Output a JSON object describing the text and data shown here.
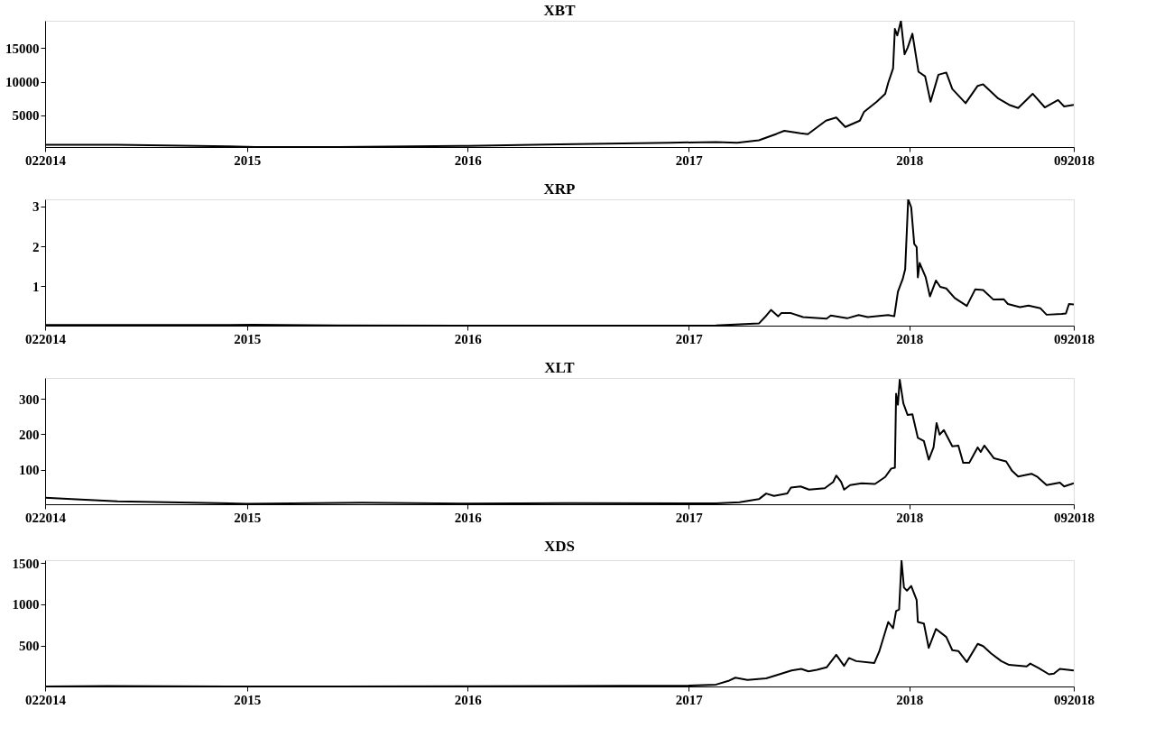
{
  "chart_data": [
    {
      "type": "line",
      "title": "XBT",
      "color": "#000000",
      "grid": false,
      "xlim": [
        "2014-02-01",
        "2018-09-30"
      ],
      "xticks": [
        {
          "value": "2014-02-01",
          "label": "022014"
        },
        {
          "value": "2015-01-01",
          "label": "2015"
        },
        {
          "value": "2016-01-01",
          "label": "2016"
        },
        {
          "value": "2017-01-01",
          "label": "2017"
        },
        {
          "value": "2018-01-01",
          "label": "2018"
        },
        {
          "value": "2018-09-30",
          "label": "092018"
        }
      ],
      "ylim": [
        250,
        19100
      ],
      "yticks": [
        5000,
        10000,
        15000
      ],
      "x": [
        "2014-02-01",
        "2014-06-01",
        "2014-12-01",
        "2015-01-15",
        "2015-06-01",
        "2016-01-01",
        "2016-06-01",
        "2016-12-01",
        "2017-02-15",
        "2017-03-22",
        "2017-04-27",
        "2017-05-26",
        "2017-06-08",
        "2017-07-05",
        "2017-07-17",
        "2017-08-16",
        "2017-09-02",
        "2017-09-17",
        "2017-10-11",
        "2017-10-18",
        "2017-11-08",
        "2017-11-22",
        "2017-11-27",
        "2017-12-05",
        "2017-12-08",
        "2017-12-12",
        "2017-12-18",
        "2017-12-24",
        "2017-12-29",
        "2018-01-06",
        "2018-01-16",
        "2018-01-27",
        "2018-02-05",
        "2018-02-18",
        "2018-03-03",
        "2018-03-13",
        "2018-04-04",
        "2018-04-24",
        "2018-05-03",
        "2018-05-28",
        "2018-06-15",
        "2018-06-30",
        "2018-07-24",
        "2018-08-13",
        "2018-09-04",
        "2018-09-14",
        "2018-09-30"
      ],
      "values": [
        600,
        600,
        350,
        250,
        260,
        430,
        650,
        900,
        1000,
        890,
        1265,
        2210,
        2680,
        2300,
        2160,
        4190,
        4660,
        3250,
        4190,
        5510,
        7020,
        8200,
        9850,
        11980,
        17880,
        16900,
        19060,
        14100,
        15050,
        17170,
        11500,
        10800,
        7020,
        11040,
        11370,
        8910,
        6790,
        9380,
        9620,
        7500,
        6550,
        6080,
        8200,
        6170,
        7260,
        6310,
        6550
      ]
    },
    {
      "type": "line",
      "title": "XRP",
      "color": "#000000",
      "grid": false,
      "xlim": [
        "2014-02-01",
        "2018-09-30"
      ],
      "xticks": [
        {
          "value": "2014-02-01",
          "label": "022014"
        },
        {
          "value": "2015-01-01",
          "label": "2015"
        },
        {
          "value": "2016-01-01",
          "label": "2016"
        },
        {
          "value": "2017-01-01",
          "label": "2017"
        },
        {
          "value": "2018-01-01",
          "label": "2018"
        },
        {
          "value": "2018-09-30",
          "label": "092018"
        }
      ],
      "ylim": [
        0.005,
        3.18
      ],
      "yticks": [
        1,
        2,
        3
      ],
      "x": [
        "2014-02-01",
        "2014-12-01",
        "2015-01-10",
        "2015-06-01",
        "2016-01-01",
        "2017-01-01",
        "2017-02-15",
        "2017-04-27",
        "2017-05-07",
        "2017-05-17",
        "2017-05-29",
        "2017-06-03",
        "2017-06-19",
        "2017-07-09",
        "2017-08-17",
        "2017-08-24",
        "2017-09-20",
        "2017-10-09",
        "2017-10-24",
        "2017-11-27",
        "2017-12-07",
        "2017-12-13",
        "2017-12-21",
        "2017-12-25",
        "2017-12-30",
        "2018-01-04",
        "2018-01-09",
        "2018-01-13",
        "2018-01-15",
        "2018-01-18",
        "2018-01-28",
        "2018-02-04",
        "2018-02-14",
        "2018-02-21",
        "2018-03-03",
        "2018-03-17",
        "2018-04-06",
        "2018-04-20",
        "2018-05-03",
        "2018-05-20",
        "2018-06-06",
        "2018-06-13",
        "2018-07-03",
        "2018-07-17",
        "2018-08-06",
        "2018-08-16",
        "2018-09-10",
        "2018-09-17",
        "2018-09-22",
        "2018-09-30"
      ],
      "values": [
        0.02,
        0.02,
        0.03,
        0.01,
        0.006,
        0.007,
        0.01,
        0.06,
        0.22,
        0.4,
        0.24,
        0.32,
        0.32,
        0.22,
        0.18,
        0.26,
        0.19,
        0.27,
        0.22,
        0.27,
        0.24,
        0.86,
        1.18,
        1.42,
        3.18,
        2.98,
        2.06,
        1.98,
        1.22,
        1.58,
        1.22,
        0.74,
        1.14,
        0.98,
        0.94,
        0.7,
        0.5,
        0.92,
        0.9,
        0.66,
        0.67,
        0.55,
        0.47,
        0.51,
        0.44,
        0.28,
        0.3,
        0.31,
        0.55,
        0.54
      ]
    },
    {
      "type": "line",
      "title": "XLT",
      "color": "#000000",
      "grid": false,
      "xlim": [
        "2014-02-01",
        "2018-09-30"
      ],
      "xticks": [
        {
          "value": "2014-02-01",
          "label": "022014"
        },
        {
          "value": "2015-01-01",
          "label": "2015"
        },
        {
          "value": "2016-01-01",
          "label": "2016"
        },
        {
          "value": "2017-01-01",
          "label": "2017"
        },
        {
          "value": "2018-01-01",
          "label": "2018"
        },
        {
          "value": "2018-09-30",
          "label": "092018"
        }
      ],
      "ylim": [
        1.5,
        360
      ],
      "yticks": [
        100,
        200,
        300
      ],
      "x": [
        "2014-02-01",
        "2014-04-01",
        "2014-06-01",
        "2015-01-01",
        "2015-07-10",
        "2016-01-01",
        "2016-06-15",
        "2017-01-01",
        "2017-02-15",
        "2017-03-26",
        "2017-04-27",
        "2017-05-09",
        "2017-05-22",
        "2017-06-13",
        "2017-06-19",
        "2017-07-05",
        "2017-07-19",
        "2017-08-14",
        "2017-08-28",
        "2017-09-02",
        "2017-09-10",
        "2017-09-15",
        "2017-09-25",
        "2017-10-14",
        "2017-11-05",
        "2017-11-22",
        "2017-12-02",
        "2017-12-08",
        "2017-12-10",
        "2017-12-13",
        "2017-12-16",
        "2017-12-22",
        "2017-12-29",
        "2018-01-06",
        "2018-01-15",
        "2018-01-25",
        "2018-02-02",
        "2018-02-10",
        "2018-02-15",
        "2018-02-20",
        "2018-02-27",
        "2018-03-13",
        "2018-03-23",
        "2018-03-31",
        "2018-04-10",
        "2018-04-24",
        "2018-04-29",
        "2018-05-05",
        "2018-05-21",
        "2018-06-10",
        "2018-06-20",
        "2018-06-30",
        "2018-07-22",
        "2018-08-01",
        "2018-08-16",
        "2018-09-07",
        "2018-09-14",
        "2018-09-30"
      ],
      "values": [
        20,
        15,
        10,
        3,
        6,
        3.5,
        4.5,
        4,
        4,
        7,
        16,
        32,
        25,
        32,
        49,
        52,
        43,
        47,
        65,
        83,
        65,
        43,
        56,
        61,
        59,
        79,
        103,
        105,
        315,
        284,
        355,
        288,
        255,
        257,
        190,
        181,
        128,
        163,
        232,
        199,
        212,
        166,
        168,
        119,
        119,
        163,
        150,
        168,
        132,
        123,
        96,
        80,
        88,
        79,
        56,
        63,
        52,
        61
      ]
    },
    {
      "type": "line",
      "title": "XDS",
      "color": "#000000",
      "grid": false,
      "xlim": [
        "2014-02-01",
        "2018-09-30"
      ],
      "xticks": [
        {
          "value": "2014-02-01",
          "label": "022014"
        },
        {
          "value": "2015-01-01",
          "label": "2015"
        },
        {
          "value": "2016-01-01",
          "label": "2016"
        },
        {
          "value": "2017-01-01",
          "label": "2017"
        },
        {
          "value": "2018-01-01",
          "label": "2018"
        },
        {
          "value": "2018-09-30",
          "label": "092018"
        }
      ],
      "ylim": [
        2,
        1535
      ],
      "yticks": [
        500,
        1000,
        1500
      ],
      "x": [
        "2014-02-01",
        "2014-05-15",
        "2014-12-01",
        "2015-06-01",
        "2016-01-01",
        "2016-06-01",
        "2017-01-01",
        "2017-02-15",
        "2017-03-09",
        "2017-03-19",
        "2017-04-08",
        "2017-05-09",
        "2017-05-26",
        "2017-06-20",
        "2017-07-06",
        "2017-07-18",
        "2017-08-01",
        "2017-08-17",
        "2017-09-02",
        "2017-09-15",
        "2017-09-23",
        "2017-10-05",
        "2017-11-04",
        "2017-11-12",
        "2017-11-27",
        "2017-12-05",
        "2017-12-10",
        "2017-12-15",
        "2017-12-19",
        "2017-12-23",
        "2017-12-28",
        "2018-01-04",
        "2018-01-13",
        "2018-01-15",
        "2018-01-25",
        "2018-02-02",
        "2018-02-14",
        "2018-03-03",
        "2018-03-13",
        "2018-03-23",
        "2018-04-06",
        "2018-04-24",
        "2018-05-03",
        "2018-05-16",
        "2018-06-02",
        "2018-06-15",
        "2018-07-14",
        "2018-07-20",
        "2018-08-03",
        "2018-08-20",
        "2018-08-28",
        "2018-09-07",
        "2018-09-30"
      ],
      "values": [
        3,
        8,
        3,
        3,
        3.5,
        8,
        12,
        25,
        74,
        109,
        82,
        101,
        139,
        196,
        215,
        185,
        204,
        234,
        386,
        253,
        348,
        310,
        287,
        424,
        785,
        709,
        918,
        937,
        1526,
        1203,
        1165,
        1222,
        1051,
        785,
        766,
        470,
        701,
        603,
        443,
        432,
        299,
        519,
        492,
        405,
        310,
        264,
        245,
        280,
        226,
        150,
        158,
        215,
        196
      ]
    }
  ]
}
